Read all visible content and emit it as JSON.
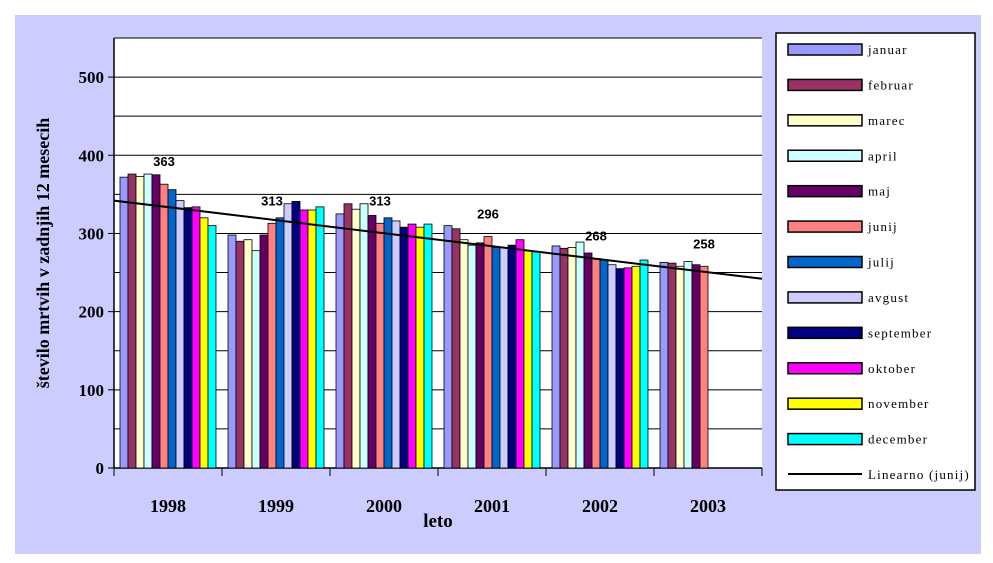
{
  "colors": {
    "chart_area_bg": "#ccccff",
    "plot_bg": "#ffffff",
    "grid": "#000000",
    "trendline": "#000000",
    "legend_bg": "#ffffff"
  },
  "chart_data": {
    "type": "bar",
    "title": "",
    "xlabel": "leto",
    "ylabel": "število mrtvih v zadnjih 12 mesecih",
    "ylim": [
      0,
      550
    ],
    "yticks": [
      0,
      100,
      200,
      300,
      400,
      500
    ],
    "grid": "horizontal every 50",
    "legend_position": "right",
    "categories": [
      "1998",
      "1999",
      "2000",
      "2001",
      "2002",
      "2003"
    ],
    "series": [
      {
        "name": "januar",
        "color": "#9999ff",
        "values": [
          372,
          298,
          325,
          310,
          284,
          263
        ]
      },
      {
        "name": "februar",
        "color": "#993366",
        "values": [
          376,
          290,
          338,
          306,
          281,
          262
        ]
      },
      {
        "name": "marec",
        "color": "#ffffcc",
        "values": [
          373,
          292,
          331,
          292,
          282,
          258
        ]
      },
      {
        "name": "april",
        "color": "#ccffff",
        "values": [
          376,
          278,
          338,
          285,
          289,
          264
        ]
      },
      {
        "name": "maj",
        "color": "#660066",
        "values": [
          375,
          298,
          323,
          288,
          275,
          260
        ]
      },
      {
        "name": "junij",
        "color": "#ff8080",
        "values": [
          363,
          313,
          313,
          296,
          268,
          258
        ]
      },
      {
        "name": "julij",
        "color": "#0066cc",
        "values": [
          356,
          320,
          320,
          282,
          266,
          null
        ]
      },
      {
        "name": "avgust",
        "color": "#ccccff",
        "values": [
          342,
          338,
          316,
          282,
          260,
          null
        ]
      },
      {
        "name": "september",
        "color": "#000080",
        "values": [
          333,
          341,
          308,
          285,
          255,
          null
        ]
      },
      {
        "name": "oktober",
        "color": "#ff00ff",
        "values": [
          334,
          330,
          312,
          292,
          256,
          null
        ]
      },
      {
        "name": "november",
        "color": "#ffff00",
        "values": [
          320,
          330,
          308,
          278,
          258,
          null
        ]
      },
      {
        "name": "december",
        "color": "#00ffff",
        "values": [
          310,
          334,
          312,
          277,
          266,
          null
        ]
      }
    ],
    "data_labels": [
      {
        "category": "1998",
        "series": "junij",
        "text": "363"
      },
      {
        "category": "1999",
        "series": "junij",
        "text": "313"
      },
      {
        "category": "2000",
        "series": "junij",
        "text": "313"
      },
      {
        "category": "2001",
        "series": "junij",
        "text": "296"
      },
      {
        "category": "2002",
        "series": "junij",
        "text": "268"
      },
      {
        "category": "2003",
        "series": "junij",
        "text": "258"
      }
    ],
    "trendline": {
      "name": "Linearno (junij)",
      "based_on": "junij",
      "start_value": 342,
      "end_value": 242
    }
  }
}
